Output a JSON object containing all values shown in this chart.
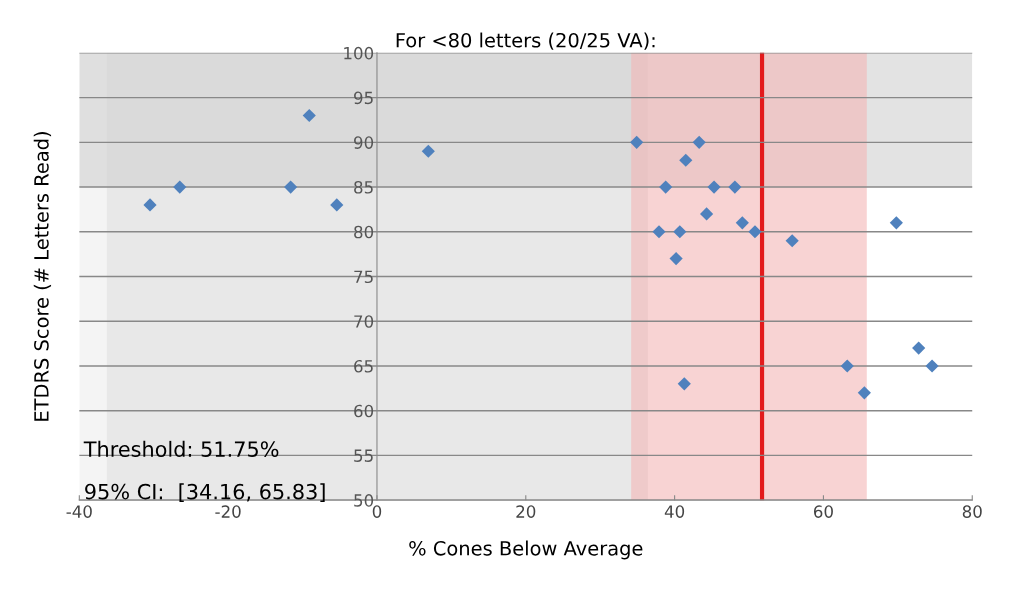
{
  "chart_data": {
    "type": "scatter",
    "title": "For <80 letters (20/25 VA):",
    "xlabel": "% Cones Below Average",
    "ylabel": "ETDRS Score (# Letters Read)",
    "x": [
      -30.5,
      -26.5,
      -11.6,
      -9.1,
      -5.4,
      6.9,
      34.9,
      43.3,
      41.5,
      38.8,
      45.3,
      48.1,
      44.3,
      49.1,
      50.8,
      37.9,
      40.7,
      40.2,
      55.8,
      69.8,
      41.3,
      63.2,
      65.5,
      72.8,
      74.6
    ],
    "values": [
      83,
      85,
      85,
      93,
      83,
      89,
      90,
      90,
      88,
      85,
      85,
      85,
      82,
      81,
      80,
      80,
      80,
      77,
      79,
      81,
      63,
      65,
      62,
      67,
      65
    ],
    "color": "#4f81bd",
    "marker": "diamond",
    "xlim": [
      -40,
      80
    ],
    "xticks": [
      -40,
      -20,
      0,
      20,
      40,
      60,
      80
    ],
    "ylim": [
      50,
      100
    ],
    "yticks": [
      50,
      55,
      60,
      65,
      70,
      75,
      80,
      85,
      90,
      95,
      100
    ],
    "grid": "y",
    "legend": false,
    "ref_lines": [
      {
        "axis": "x",
        "value": 51.75,
        "color": "#e31a1c"
      }
    ],
    "bands": [
      {
        "axis": "x",
        "from": -40,
        "to": 36.4,
        "color": "#ececec"
      },
      {
        "axis": "x",
        "from": -36.3,
        "to": 36.4,
        "color": "#e0e0e0"
      },
      {
        "axis": "y",
        "from": 85,
        "to": 100,
        "color": "#d0d0d0"
      },
      {
        "axis": "x",
        "from": 34.16,
        "to": 65.83,
        "color": "#f4b6b6"
      }
    ],
    "annotations": [
      "Threshold: 51.75%",
      "95% CI:  [34.16, 65.83]"
    ]
  }
}
